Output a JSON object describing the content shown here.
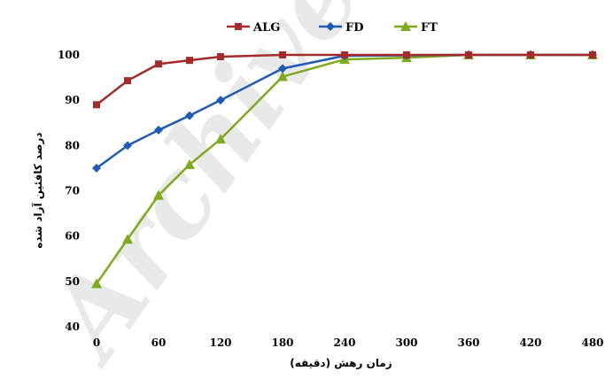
{
  "chart_data": {
    "type": "line",
    "x": [
      0,
      30,
      60,
      90,
      120,
      180,
      240,
      300,
      360,
      420,
      480
    ],
    "xticks": [
      "0",
      "60",
      "120",
      "180",
      "240",
      "300",
      "360",
      "420",
      "480"
    ],
    "yticks": [
      "40",
      "50",
      "60",
      "70",
      "80",
      "90",
      "100"
    ],
    "xlim": [
      0,
      480
    ],
    "ylim": [
      40,
      100
    ],
    "xlabel": "زمان رهش (دقیقه)",
    "ylabel": "درصد کافئین آزاد شده",
    "legend_position": "top-center",
    "grid": false,
    "series": [
      {
        "name": "ALG",
        "color": "#a52a2a",
        "marker": "square",
        "values": [
          89,
          94.3,
          98,
          98.8,
          99.6,
          100,
          100,
          100,
          100,
          100,
          100
        ]
      },
      {
        "name": "FD",
        "color": "#1f5bb5",
        "marker": "diamond",
        "values": [
          75,
          80,
          83.4,
          86.6,
          90,
          97,
          99.8,
          99.9,
          100,
          100,
          100
        ]
      },
      {
        "name": "FT",
        "color": "#7faa1e",
        "marker": "triangle",
        "values": [
          49.5,
          59.3,
          69,
          75.8,
          81.4,
          95.2,
          99,
          99.4,
          100,
          100,
          100
        ]
      }
    ],
    "watermark": "Archive of SID"
  }
}
